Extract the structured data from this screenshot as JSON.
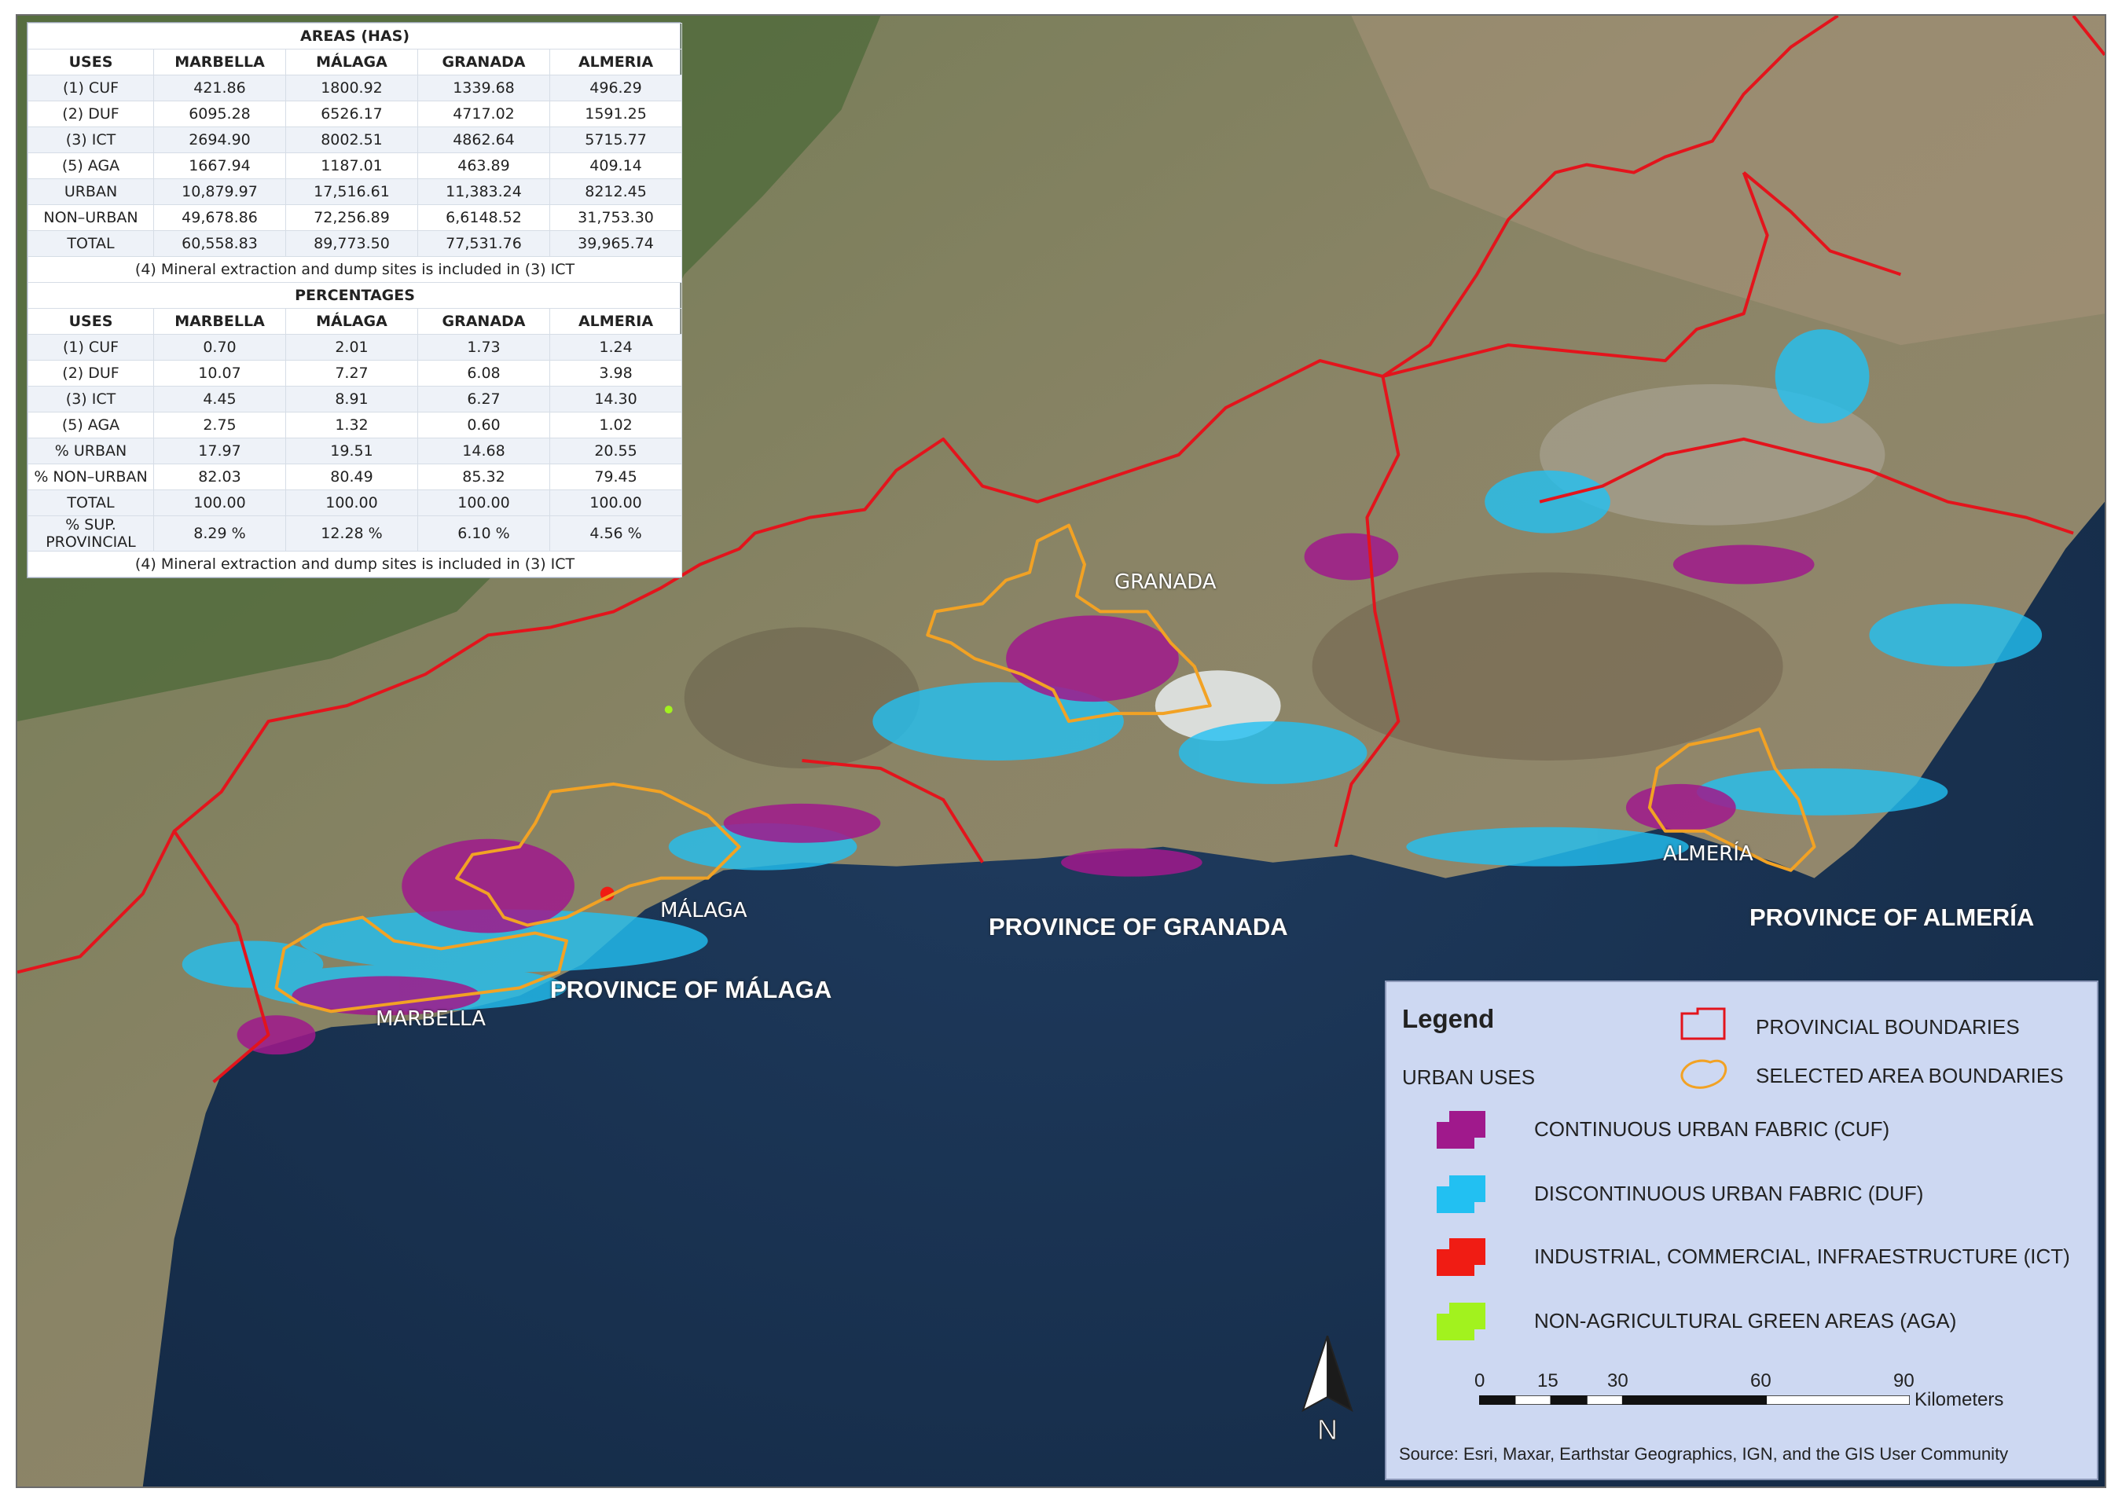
{
  "stats_table": {
    "areas_title": "AREAS (HAS)",
    "columns": [
      "USES",
      "MARBELLA",
      "MÁLAGA",
      "GRANADA",
      "ALMERIA"
    ],
    "areas_rows": [
      [
        "(1) CUF",
        "421.86",
        "1800.92",
        "1339.68",
        "496.29"
      ],
      [
        "(2) DUF",
        "6095.28",
        "6526.17",
        "4717.02",
        "1591.25"
      ],
      [
        "(3) ICT",
        "2694.90",
        "8002.51",
        "4862.64",
        "5715.77"
      ],
      [
        "(5) AGA",
        "1667.94",
        "1187.01",
        "463.89",
        "409.14"
      ],
      [
        "URBAN",
        "10,879.97",
        "17,516.61",
        "11,383.24",
        "8212.45"
      ],
      [
        "NON–URBAN",
        "49,678.86",
        "72,256.89",
        "6,6148.52",
        "31,753.30"
      ],
      [
        "TOTAL",
        "60,558.83",
        "89,773.50",
        "77,531.76",
        "39,965.74"
      ]
    ],
    "note": "(4) Mineral extraction and dump sites is included in (3) ICT",
    "percentages_title": "PERCENTAGES",
    "pct_rows": [
      [
        "(1) CUF",
        "0.70",
        "2.01",
        "1.73",
        "1.24"
      ],
      [
        "(2) DUF",
        "10.07",
        "7.27",
        "6.08",
        "3.98"
      ],
      [
        "(3) ICT",
        "4.45",
        "8.91",
        "6.27",
        "14.30"
      ],
      [
        "(5) AGA",
        "2.75",
        "1.32",
        "0.60",
        "1.02"
      ],
      [
        "% URBAN",
        "17.97",
        "19.51",
        "14.68",
        "20.55"
      ],
      [
        "% NON–URBAN",
        "82.03",
        "80.49",
        "85.32",
        "79.45"
      ],
      [
        "TOTAL",
        "100.00",
        "100.00",
        "100.00",
        "100.00"
      ]
    ],
    "sup_label_1": "% SUP.",
    "sup_label_2": "PROVINCIAL",
    "sup_values": [
      "8.29 %",
      "12.28 %",
      "6.10 %",
      "4.56 %"
    ]
  },
  "places": {
    "granada": "GRANADA",
    "malaga": "MÁLAGA",
    "marbella": "MARBELLA",
    "almeria": "ALMERÍA"
  },
  "provinces": {
    "malaga": "PROVINCE OF MÁLAGA",
    "granada": "PROVINCE OF GRANADA",
    "almeria": "PROVINCE OF ALMERÍA"
  },
  "legend": {
    "title": "Legend",
    "urban_uses": "URBAN USES",
    "provincial_boundaries": "PROVINCIAL BOUNDARIES",
    "selected_area_boundaries": "SELECTED AREA BOUNDARIES",
    "items": [
      {
        "label": "CONTINUOUS URBAN FABRIC (CUF)",
        "color": "#a0198c"
      },
      {
        "label": "DISCONTINUOUS URBAN FABRIC (DUF)",
        "color": "#22c0f2"
      },
      {
        "label": "INDUSTRIAL, COMMERCIAL, INFRAESTRUCTURE (ICT)",
        "color": "#f01c14"
      },
      {
        "label": "NON-AGRICULTURAL GREEN AREAS (AGA)",
        "color": "#a2f21e"
      }
    ],
    "scale_labels": [
      "0",
      "15",
      "30",
      "60",
      "90"
    ],
    "scale_unit": "Kilometers",
    "source": "Source: Esri, Maxar, Earthstar Geographics, IGN, and the GIS User Community"
  },
  "north_label": "N",
  "colors": {
    "sea": "#1b3453",
    "provincial_boundary": "#e3141c",
    "selected_boundary": "#f2a224",
    "cuf": "#a0198c",
    "duf": "#22c0f2"
  }
}
